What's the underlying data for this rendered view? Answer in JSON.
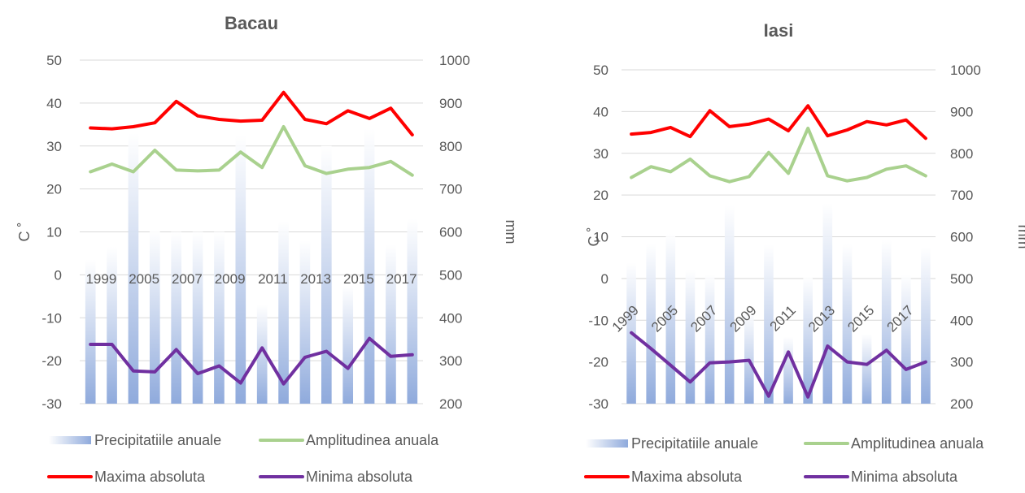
{
  "colors": {
    "precip": "#b4c7e7",
    "amplitude": "#a9d18e",
    "max": "#ff0000",
    "min": "#7030a0",
    "grid": "#d9d9d9",
    "text": "#595959"
  },
  "chart_data": [
    {
      "type": "bar+line",
      "title": "Bacau",
      "ylabel": "C ˚",
      "y2label": "mm",
      "ylim": [
        -30,
        50
      ],
      "y2lim": [
        200,
        1000
      ],
      "yticks": [
        "50",
        "40",
        "30",
        "20",
        "10",
        "0",
        "-10",
        "-20",
        "-30"
      ],
      "y2ticks": [
        "1000",
        "900",
        "800",
        "700",
        "600",
        "500",
        "400",
        "300",
        "200"
      ],
      "xtick_labels": [
        "1999",
        "2005",
        "2007",
        "2009",
        "2011",
        "2013",
        "2015",
        "2017"
      ],
      "xtick_rotated": false,
      "categories_count": 16,
      "legend": [
        "Precipitatiile anuale",
        "Amplitudinea anuala",
        "Maxima absoluta",
        "Minima absoluta"
      ],
      "series": [
        {
          "name": "Precipitatiile anuale",
          "kind": "bar",
          "axis": "right",
          "values": [
            535,
            565,
            830,
            605,
            600,
            600,
            600,
            825,
            430,
            625,
            580,
            800,
            475,
            840,
            570,
            630
          ]
        },
        {
          "name": "Amplitudinea anuala",
          "kind": "line",
          "axis": "left",
          "values": [
            24,
            25.8,
            24,
            29,
            24.4,
            24.2,
            24.4,
            28.6,
            25,
            34.5,
            25.4,
            23.6,
            24.6,
            25,
            26.4,
            23.2
          ]
        },
        {
          "name": "Maxima absoluta",
          "kind": "line",
          "axis": "left",
          "values": [
            34.2,
            34,
            34.5,
            35.4,
            40.4,
            37,
            36.2,
            35.8,
            36,
            42.5,
            36.2,
            35.2,
            38.2,
            36.4,
            38.8,
            32.6
          ]
        },
        {
          "name": "Minima absoluta",
          "kind": "line",
          "axis": "left",
          "values": [
            -16.2,
            -16.2,
            -22.4,
            -22.6,
            -17.4,
            -23,
            -21.2,
            -25.2,
            -17,
            -25.4,
            -19.2,
            -17.8,
            -21.8,
            -14.8,
            -19,
            -18.6
          ]
        }
      ]
    },
    {
      "type": "bar+line",
      "title": "Iasi",
      "ylabel": "C ˚",
      "y2label": "mm",
      "ylim": [
        -30,
        50
      ],
      "y2lim": [
        200,
        1000
      ],
      "yticks": [
        "50",
        "40",
        "30",
        "20",
        "10",
        "0",
        "-10",
        "-20",
        "-30"
      ],
      "y2ticks": [
        "1000",
        "900",
        "800",
        "700",
        "600",
        "500",
        "400",
        "300",
        "200"
      ],
      "xtick_labels": [
        "1999",
        "2005",
        "2007",
        "2009",
        "2011",
        "2013",
        "2015",
        "2017"
      ],
      "xtick_rotated": true,
      "categories_count": 16,
      "legend": [
        "Precipitatiile anuale",
        "Amplitudinea anuala",
        "Maxima absoluta",
        "Minima absoluta"
      ],
      "series": [
        {
          "name": "Precipitatiile anuale",
          "kind": "bar",
          "axis": "right",
          "values": [
            538,
            584,
            607,
            520,
            510,
            675,
            420,
            581,
            360,
            505,
            680,
            582,
            367,
            592,
            508,
            575
          ]
        },
        {
          "name": "Amplitudinea anuala",
          "kind": "line",
          "axis": "left",
          "values": [
            24.2,
            26.8,
            25.6,
            28.6,
            24.6,
            23.2,
            24.4,
            30.2,
            25.2,
            36,
            24.6,
            23.4,
            24.2,
            26.2,
            27,
            24.6
          ]
        },
        {
          "name": "Maxima absoluta",
          "kind": "line",
          "axis": "left",
          "values": [
            34.6,
            35,
            36.2,
            34,
            40.2,
            36.4,
            37,
            38.2,
            35.4,
            41.4,
            34.2,
            35.6,
            37.6,
            36.8,
            38,
            33.6
          ]
        },
        {
          "name": "Minima absoluta",
          "kind": "line",
          "axis": "left",
          "values": [
            -13,
            -16.8,
            -20.8,
            -24.8,
            -20.2,
            -20,
            -19.6,
            -28.2,
            -17.6,
            -28.4,
            -16.2,
            -20,
            -20.6,
            -17.2,
            -21.8,
            -20
          ]
        }
      ]
    }
  ]
}
